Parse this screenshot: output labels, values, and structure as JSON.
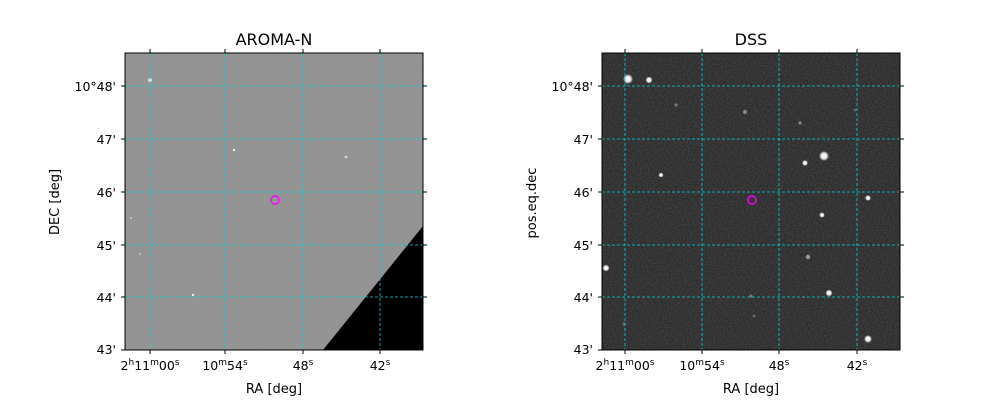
{
  "panels": [
    {
      "title": "AROMA-N",
      "xlabel": "RA [deg]",
      "ylabel": "DEC [deg]",
      "background": "#8e8e8e",
      "mask_color": "#000000",
      "dec_ticks": [
        "10°48'",
        "47'",
        "46'",
        "45'",
        "44'",
        "43'"
      ],
      "ra_ticks": [
        "2h11m00s",
        "10m54s",
        "48s",
        "42s"
      ],
      "target_color": "#ff00ff"
    },
    {
      "title": "DSS",
      "xlabel": "RA [deg]",
      "ylabel": "pos.eq.dec",
      "background": "#1e1e1e",
      "dec_ticks": [
        "10°48'",
        "47'",
        "46'",
        "45'",
        "44'",
        "43'"
      ],
      "ra_ticks": [
        "2h11m00s",
        "10m54s",
        "48s",
        "42s"
      ],
      "target_color": "#ff00ff"
    }
  ],
  "grid_color": "#00d8d8"
}
